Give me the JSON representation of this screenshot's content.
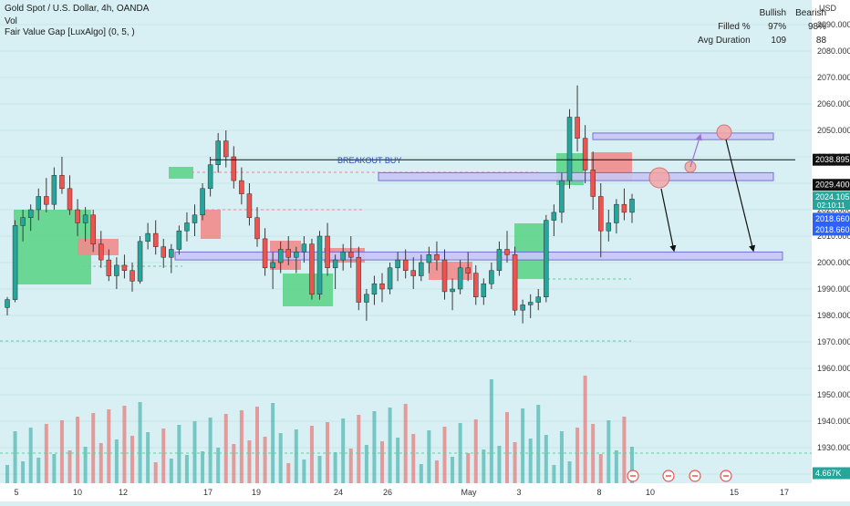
{
  "legend": {
    "title": "Gold Spot / U.S. Dollar, 4h, OANDA",
    "volume": "Vol",
    "indicator": "Fair Value Gap [LuxAlgo] (0, 5, )"
  },
  "stats_table": {
    "headers": [
      "",
      "Bullish",
      "Bearish"
    ],
    "rows": [
      {
        "label": "Filled %",
        "bullish": "97%",
        "bearish": "98%"
      },
      {
        "label": "Avg Duration",
        "bullish": "109",
        "bearish": "88"
      }
    ]
  },
  "annotation": {
    "breakout_label": "BREAKOUT BUY"
  },
  "price_axis": {
    "currency": "USD",
    "ticks": [
      "2090.000",
      "2080.000",
      "2070.000",
      "2060.000",
      "2050.000",
      "2040.000",
      "2030.000",
      "2020.000",
      "2010.000",
      "2000.000",
      "1990.000",
      "1980.000",
      "1970.000",
      "1960.000",
      "1950.000",
      "1940.000",
      "1930.000",
      "1920.000"
    ],
    "tag_top": "2038.895",
    "tag_2029": "2029.400",
    "tag_current_price": "2024.105",
    "tag_countdown": "02:10:11",
    "tag_a": "2018.660",
    "tag_b": "2018.660",
    "tag_volume": "4.667K"
  },
  "time_axis": {
    "labels": [
      "5",
      "10",
      "12",
      "17",
      "19",
      "24",
      "26",
      "May",
      "3",
      "8",
      "10",
      "15",
      "17"
    ]
  },
  "colors": {
    "up": "#26a69a",
    "down": "#ef5350",
    "bull_zone": "#5fd48a",
    "bear_zone": "#f28b8b",
    "zone_fill": "#c9c8f5",
    "zone_border": "#6c63d9",
    "purple_arrow": "#9b70d8",
    "blue_tag": "#2962ff"
  },
  "chart_data": {
    "type": "candlestick",
    "symbol": "XAUUSD",
    "timeframe": "4h",
    "y_range": [
      1915,
      2095
    ],
    "candles": [
      [
        1983,
        1987,
        1980,
        1986
      ],
      [
        1986,
        2016,
        1985,
        2014
      ],
      [
        2014,
        2020,
        2008,
        2017
      ],
      [
        2017,
        2022,
        2012,
        2020
      ],
      [
        2020,
        2028,
        2016,
        2025
      ],
      [
        2025,
        2032,
        2019,
        2022
      ],
      [
        2022,
        2036,
        2020,
        2033
      ],
      [
        2033,
        2040,
        2026,
        2028
      ],
      [
        2028,
        2033,
        2018,
        2020
      ],
      [
        2020,
        2024,
        2010,
        2015
      ],
      [
        2015,
        2021,
        2008,
        2018
      ],
      [
        2018,
        2020,
        2004,
        2007
      ],
      [
        2007,
        2012,
        1998,
        2001
      ],
      [
        2001,
        2005,
        1993,
        1995
      ],
      [
        1995,
        2002,
        1990,
        1999
      ],
      [
        1999,
        2003,
        1994,
        1997
      ],
      [
        1997,
        2000,
        1989,
        1993
      ],
      [
        1993,
        2010,
        1992,
        2008
      ],
      [
        2008,
        2015,
        2005,
        2011
      ],
      [
        2011,
        2016,
        2003,
        2006
      ],
      [
        2006,
        2009,
        1998,
        2002
      ],
      [
        2002,
        2007,
        1996,
        2005
      ],
      [
        2005,
        2014,
        2003,
        2012
      ],
      [
        2012,
        2019,
        2008,
        2015
      ],
      [
        2015,
        2022,
        2010,
        2018
      ],
      [
        2018,
        2030,
        2016,
        2028
      ],
      [
        2028,
        2040,
        2025,
        2037
      ],
      [
        2037,
        2049,
        2034,
        2046
      ],
      [
        2046,
        2050,
        2036,
        2040
      ],
      [
        2040,
        2044,
        2028,
        2031
      ],
      [
        2031,
        2036,
        2022,
        2026
      ],
      [
        2026,
        2030,
        2014,
        2017
      ],
      [
        2017,
        2021,
        2006,
        2009
      ],
      [
        2009,
        2013,
        1995,
        1998
      ],
      [
        1998,
        2004,
        1990,
        2000
      ],
      [
        2000,
        2008,
        1996,
        2005
      ],
      [
        2005,
        2010,
        1999,
        2002
      ],
      [
        2002,
        2006,
        1996,
        2004
      ],
      [
        2004,
        2010,
        2000,
        2007
      ],
      [
        2007,
        2009,
        1986,
        1988
      ],
      [
        1988,
        2012,
        1986,
        2010
      ],
      [
        2010,
        2015,
        1995,
        1998
      ],
      [
        1998,
        2003,
        1990,
        2001
      ],
      [
        2001,
        2007,
        1997,
        2004
      ],
      [
        2004,
        2010,
        1998,
        2002
      ],
      [
        2002,
        2006,
        1982,
        1985
      ],
      [
        1985,
        1990,
        1978,
        1988
      ],
      [
        1988,
        1995,
        1984,
        1992
      ],
      [
        1992,
        1996,
        1985,
        1990
      ],
      [
        1990,
        2000,
        1988,
        1998
      ],
      [
        1998,
        2004,
        1993,
        2001
      ],
      [
        2001,
        2005,
        1994,
        1997
      ],
      [
        1997,
        2002,
        1990,
        1995
      ],
      [
        1995,
        2003,
        1993,
        2000
      ],
      [
        2000,
        2006,
        1996,
        2003
      ],
      [
        2003,
        2008,
        1997,
        2001
      ],
      [
        2001,
        2005,
        1986,
        1989
      ],
      [
        1989,
        1994,
        1982,
        1990
      ],
      [
        1990,
        2001,
        1988,
        1998
      ],
      [
        1998,
        2004,
        1993,
        1996
      ],
      [
        1996,
        1999,
        1984,
        1987
      ],
      [
        1987,
        1994,
        1984,
        1992
      ],
      [
        1992,
        2000,
        1990,
        1997
      ],
      [
        1997,
        2008,
        1995,
        2005
      ],
      [
        2005,
        2012,
        2000,
        2003
      ],
      [
        2003,
        2006,
        1980,
        1982
      ],
      [
        1982,
        1986,
        1977,
        1984
      ],
      [
        1984,
        1988,
        1979,
        1985
      ],
      [
        1985,
        1990,
        1982,
        1987
      ],
      [
        1987,
        2018,
        1985,
        2016
      ],
      [
        2016,
        2022,
        2010,
        2019
      ],
      [
        2019,
        2034,
        2015,
        2031
      ],
      [
        2031,
        2058,
        2028,
        2055
      ],
      [
        2055,
        2067,
        2042,
        2047
      ],
      [
        2047,
        2052,
        2030,
        2035
      ],
      [
        2035,
        2042,
        2020,
        2025
      ],
      [
        2025,
        2030,
        2002,
        2012
      ],
      [
        2012,
        2020,
        2008,
        2015
      ],
      [
        2015,
        2024,
        2011,
        2022
      ],
      [
        2022,
        2028,
        2016,
        2019
      ],
      [
        2019,
        2026,
        2015,
        2024
      ]
    ],
    "volume_label": "4.667K",
    "fair_value_gaps": {
      "bullish_filled_pct": "97%",
      "bearish_filled_pct": "98%",
      "bullish_avg_duration": "109",
      "bearish_avg_duration": "88"
    },
    "zones": [
      {
        "name": "upper",
        "from": 2046.5,
        "to": 2049
      },
      {
        "name": "breakout",
        "from": 2031,
        "to": 2034
      },
      {
        "name": "lower",
        "from": 2001,
        "to": 2004
      }
    ],
    "breakout_line": 2038.9,
    "annotations": [
      "BREAKOUT BUY"
    ]
  }
}
